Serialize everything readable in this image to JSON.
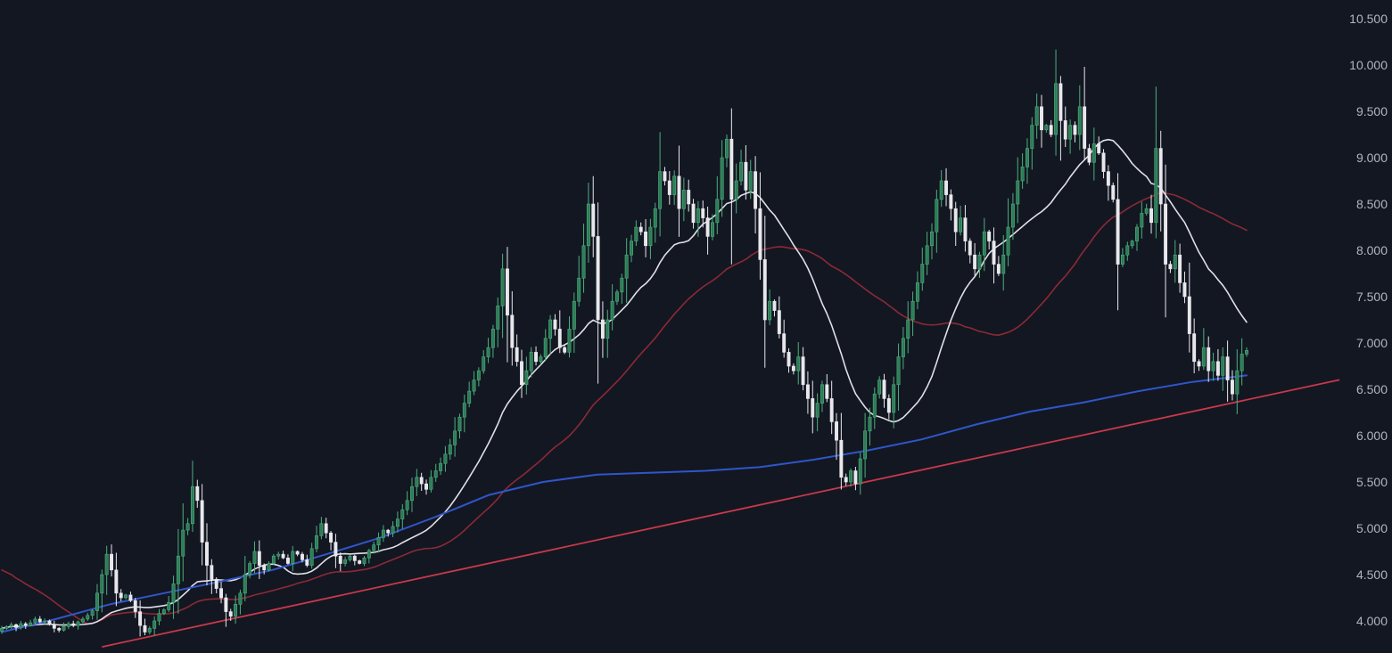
{
  "chart_data": {
    "type": "candlestick",
    "ylim": [
      3.7,
      10.6
    ],
    "y_ticks": [
      "10.500",
      "10.000",
      "9.500",
      "9.000",
      "8.500",
      "8.000",
      "7.500",
      "7.000",
      "6.500",
      "6.000",
      "5.500",
      "5.000",
      "4.500",
      "4.000"
    ],
    "grid": false,
    "legend": "none",
    "colors": {
      "background": "#131722",
      "up_body": "#2e7d57",
      "up_wick": "#4caf7d",
      "down_body": "#e8e8ec",
      "down_wick": "#e8e8ec",
      "ma_short": "#e0e0e6",
      "ma_medium": "#8b2a35",
      "ma_long": "#2f56c9",
      "trendline": "#c8394a",
      "axis_text": "#b2b5be"
    },
    "price_series": [
      3.92,
      3.94,
      3.96,
      3.93,
      3.97,
      3.95,
      3.98,
      4.02,
      3.99,
      4.0,
      3.96,
      3.92,
      3.9,
      3.94,
      3.97,
      3.95,
      3.99,
      4.02,
      4.06,
      4.11,
      4.3,
      4.5,
      4.72,
      4.55,
      4.3,
      4.25,
      4.28,
      4.22,
      4.1,
      3.95,
      3.88,
      3.92,
      4.0,
      4.08,
      4.12,
      4.2,
      4.4,
      4.7,
      4.98,
      5.05,
      5.45,
      5.3,
      4.85,
      4.6,
      4.45,
      4.35,
      4.25,
      4.1,
      4.05,
      4.18,
      4.3,
      4.5,
      4.62,
      4.75,
      4.6,
      4.55,
      4.62,
      4.7,
      4.72,
      4.68,
      4.62,
      4.75,
      4.72,
      4.66,
      4.6,
      4.78,
      4.92,
      5.05,
      4.95,
      4.85,
      4.7,
      4.62,
      4.66,
      4.7,
      4.65,
      4.62,
      4.68,
      4.76,
      4.82,
      4.9,
      4.98,
      4.95,
      5.02,
      5.1,
      5.2,
      5.3,
      5.45,
      5.55,
      5.48,
      5.42,
      5.55,
      5.62,
      5.7,
      5.8,
      5.9,
      6.05,
      6.2,
      6.35,
      6.48,
      6.6,
      6.7,
      6.85,
      6.95,
      7.15,
      7.4,
      7.8,
      7.3,
      6.95,
      6.8,
      6.55,
      6.7,
      6.9,
      6.8,
      6.85,
      7.05,
      7.25,
      7.15,
      6.95,
      6.9,
      7.15,
      7.45,
      7.7,
      8.05,
      8.5,
      8.15,
      7.25,
      7.05,
      7.25,
      7.45,
      7.55,
      7.7,
      7.95,
      8.1,
      8.25,
      8.2,
      8.05,
      8.25,
      8.45,
      8.85,
      8.75,
      8.6,
      8.8,
      8.45,
      8.65,
      8.5,
      8.3,
      8.45,
      8.35,
      8.15,
      8.3,
      8.55,
      9.0,
      9.2,
      8.55,
      8.75,
      8.95,
      8.65,
      8.85,
      8.45,
      7.9,
      7.25,
      7.45,
      7.35,
      7.1,
      6.9,
      6.75,
      6.7,
      6.85,
      6.55,
      6.4,
      6.2,
      6.35,
      6.55,
      6.4,
      6.15,
      5.95,
      5.55,
      5.5,
      5.62,
      5.48,
      5.75,
      6.05,
      6.2,
      6.45,
      6.6,
      6.4,
      6.25,
      6.55,
      6.85,
      7.05,
      7.25,
      7.45,
      7.65,
      7.85,
      8.05,
      8.2,
      8.55,
      8.75,
      8.6,
      8.45,
      8.2,
      8.35,
      8.1,
      7.95,
      7.8,
      7.95,
      8.2,
      8.1,
      7.85,
      7.75,
      7.95,
      8.25,
      8.5,
      8.75,
      8.9,
      9.1,
      9.35,
      9.55,
      9.3,
      9.35,
      9.25,
      9.8,
      9.4,
      9.2,
      9.35,
      9.25,
      9.55,
      9.1,
      8.95,
      9.15,
      9.05,
      8.85,
      8.7,
      8.55,
      7.85,
      7.95,
      8.05,
      8.1,
      8.25,
      8.4,
      8.45,
      8.3,
      9.1,
      8.5,
      7.85,
      7.8,
      7.95,
      7.65,
      7.5,
      7.1,
      6.8,
      6.75,
      6.95,
      6.7,
      6.8,
      6.65,
      6.85,
      6.6,
      6.45,
      6.7,
      6.88,
      6.92
    ],
    "ma_short_period": 20,
    "ma_medium_period": 50,
    "ma_long_series": [
      3.88,
      4.02,
      4.18,
      4.3,
      4.42,
      4.55,
      4.72,
      4.9,
      5.12,
      5.36,
      5.5,
      5.58,
      5.6,
      5.62,
      5.66,
      5.74,
      5.84,
      5.96,
      6.12,
      6.26,
      6.36,
      6.48,
      6.58,
      6.65
    ],
    "trendline": {
      "start": {
        "index": 21,
        "value": 3.72
      },
      "end": {
        "index": 282,
        "value": 6.62
      }
    }
  }
}
